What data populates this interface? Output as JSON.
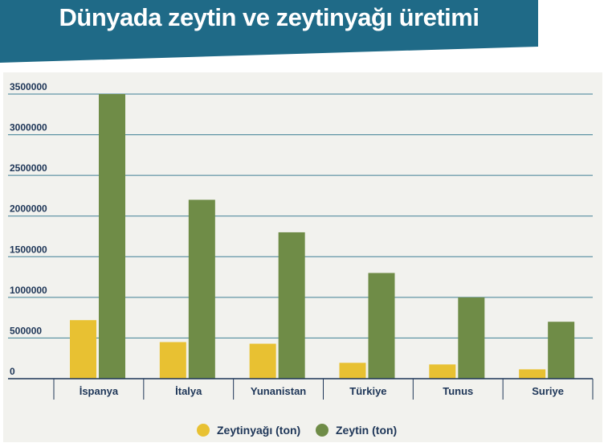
{
  "chart_data": {
    "type": "bar",
    "title": "Dünyada zeytin ve zeytinyağı üretimi",
    "categories": [
      "İspanya",
      "İtalya",
      "Yunanistan",
      "Türkiye",
      "Tunus",
      "Suriye"
    ],
    "series": [
      {
        "name": "Zeytinyağı (ton)",
        "color": "#e8c132",
        "values": [
          720000,
          450000,
          430000,
          195000,
          175000,
          115000
        ]
      },
      {
        "name": "Zeytin (ton)",
        "color": "#6f8c47",
        "values": [
          3500000,
          2200000,
          1800000,
          1300000,
          1000000,
          700000
        ]
      }
    ],
    "y_ticks": [
      "0",
      "500000",
      "1000000",
      "1500000",
      "2000000",
      "2500000",
      "3000000",
      "3500000"
    ],
    "ylim": [
      0,
      3500000
    ],
    "grid": true,
    "legend": "bottom-center",
    "colors": {
      "banner": "#1f6a87",
      "plot_bg": "#f2f2ee",
      "axis": "#1d3557"
    }
  }
}
